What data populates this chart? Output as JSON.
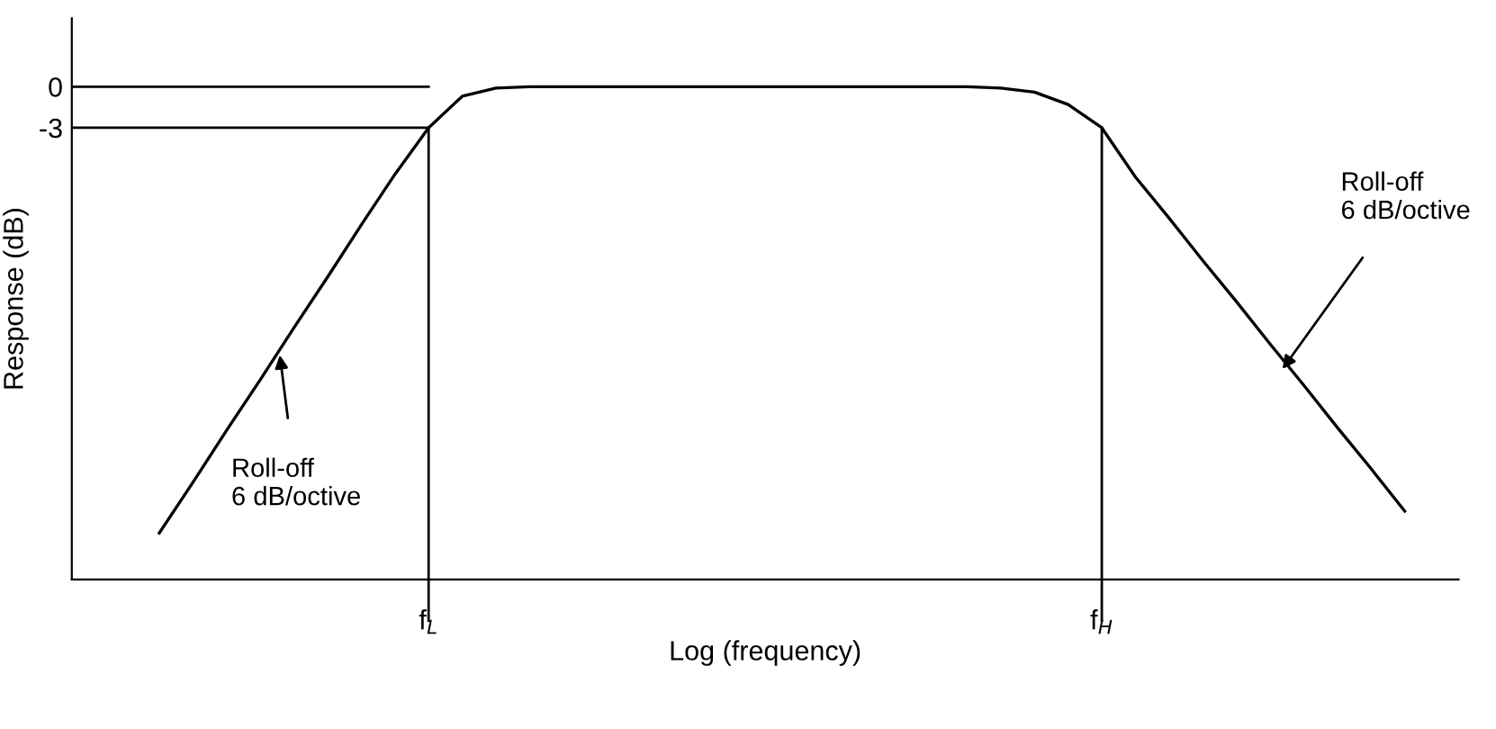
{
  "chart_data": {
    "type": "line",
    "xlabel": "Log (frequency)",
    "ylabel": "Response (dB)",
    "categories": [
      null,
      null,
      null,
      null,
      null,
      null,
      null,
      null,
      null,
      null,
      "f$_{L}$",
      null,
      null,
      null,
      null,
      null,
      null,
      null,
      null,
      null,
      null,
      null,
      null,
      null,
      null,
      null,
      null,
      null,
      null,
      null,
      "f$_{H}$",
      null,
      null,
      null,
      null,
      null,
      null,
      null,
      null,
      null,
      null
    ],
    "series": [
      {
        "color": "#000000",
        "values": [
          null,
          null,
          -32.6,
          -28.9,
          -25.1,
          -21.4,
          -17.6,
          -13.9,
          -10.1,
          -6.4,
          -3,
          -0.7,
          -0.1,
          0,
          0,
          0,
          0,
          0,
          0,
          0,
          0,
          0,
          0,
          0,
          0,
          0,
          0,
          -0.1,
          -0.4,
          -1.3,
          -3,
          -6.6,
          -9.6,
          -12.7,
          -15.7,
          -18.8,
          -21.8,
          -24.9,
          -27.9,
          -31.0,
          null
        ]
      }
    ],
    "ylim": [
      -36,
      5
    ],
    "yticks": [
      0,
      {
        "value": -3,
        "label": "-3"
      }
    ],
    "ref_lines": [
      {
        "axis": "x",
        "value": "f$_{L}$",
        "label": null,
        "color": "#000000"
      },
      {
        "axis": "x",
        "value": "f$_{H}$",
        "label": null,
        "color": "#000000"
      },
      {
        "axis": "y",
        "value": 0,
        "label": null,
        "color": "#000000"
      },
      {
        "axis": "y",
        "value": -3,
        "label": null,
        "color": "#000000"
      }
    ],
    "annotations": [
      "Roll-off\n6 dB/octive",
      "Roll-off\n6 dB/octive"
    ],
    "grid": false,
    "legend": false,
    "marker": "none",
    "line_style": "solid"
  }
}
